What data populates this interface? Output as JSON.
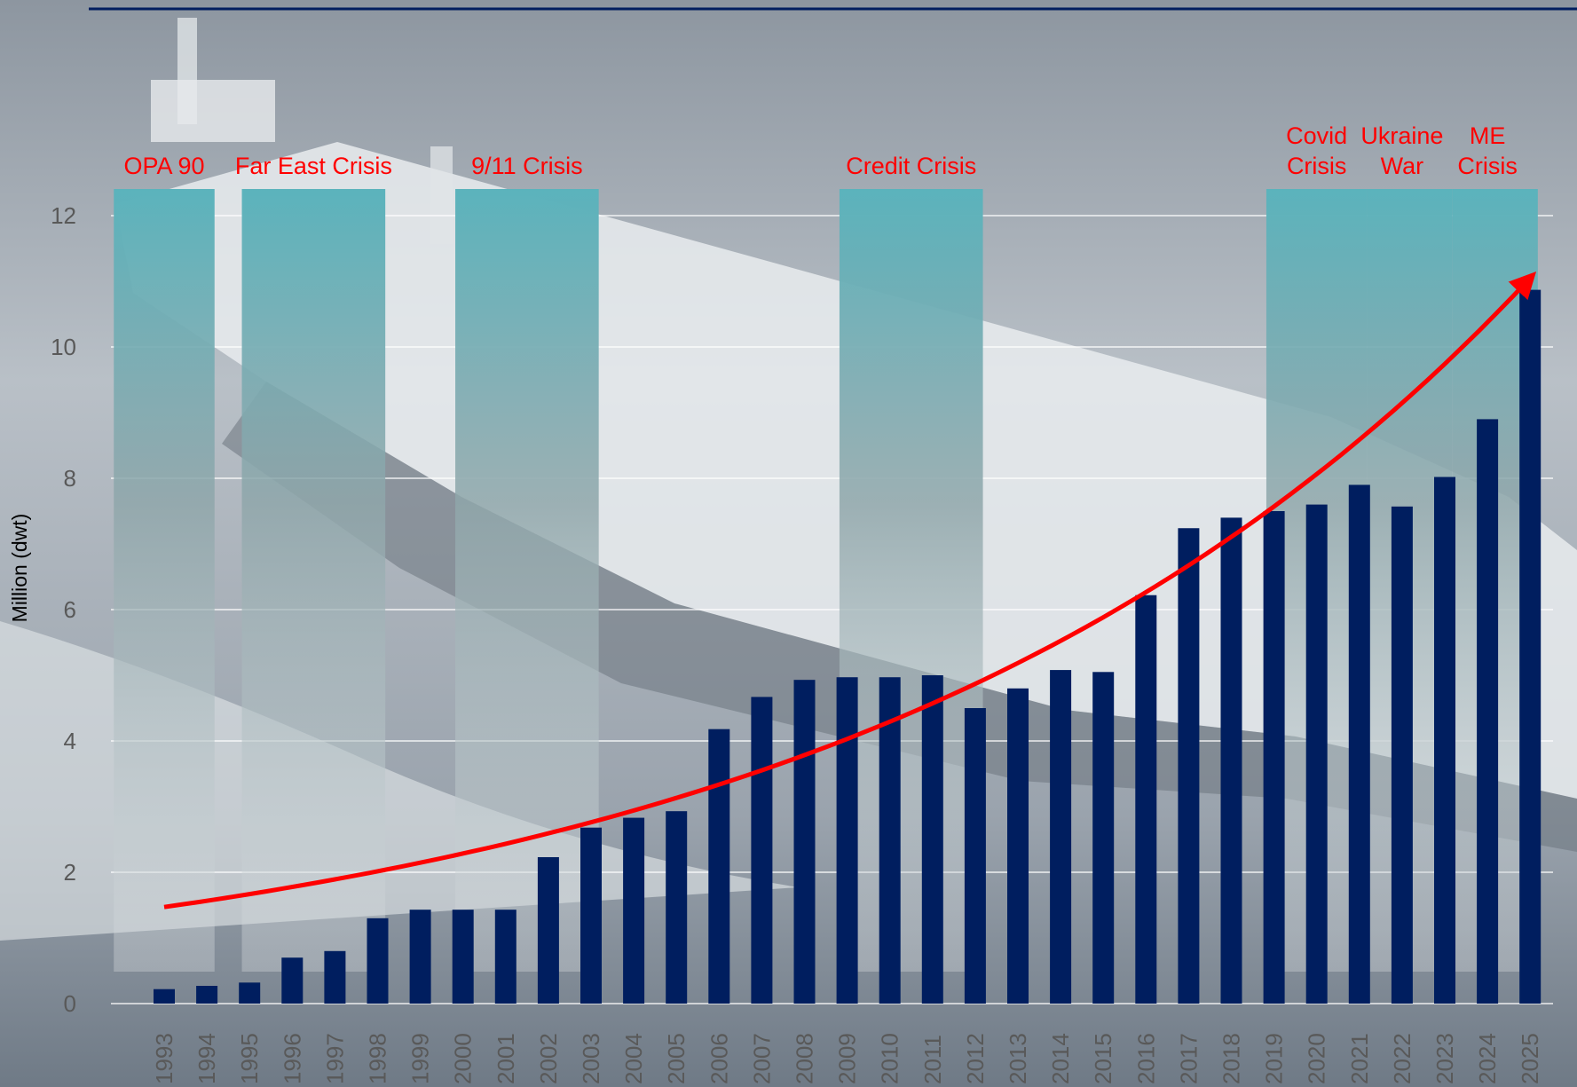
{
  "colors": {
    "bar": "#001E5F",
    "trend": "#FF0000",
    "crisis_band_top": "#5BB3BC",
    "crisis_label": "#FF0000",
    "gridline": "#FFFFFF",
    "header_rule": "#001E5F"
  },
  "chart_data": {
    "type": "bar",
    "ylabel": "Million (dwt)",
    "ylim": [
      0,
      12
    ],
    "yticks": [
      0,
      2,
      4,
      6,
      8,
      10,
      12
    ],
    "grid": true,
    "background": "photo of a crude oil tanker at sea (greyscale)",
    "categories": [
      "1993",
      "1994",
      "1995",
      "1996",
      "1997",
      "1998",
      "1999",
      "2000",
      "2001",
      "2002",
      "2003",
      "2004",
      "2005",
      "2006",
      "2007",
      "2008",
      "2009",
      "2010",
      "2011",
      "2012",
      "2013",
      "2014",
      "2015",
      "2016",
      "2017",
      "2018",
      "2019",
      "2020",
      "2021",
      "2022",
      "2023",
      "2024",
      "2025"
    ],
    "values": [
      0.22,
      0.27,
      0.32,
      0.7,
      0.8,
      1.3,
      1.43,
      1.43,
      1.43,
      2.23,
      2.68,
      2.83,
      2.93,
      4.18,
      4.67,
      4.93,
      4.97,
      4.97,
      5.0,
      4.5,
      4.8,
      5.08,
      5.05,
      6.22,
      7.24,
      7.4,
      7.5,
      7.6,
      7.9,
      7.57,
      8.02,
      8.9,
      10.87
    ],
    "trend_line": {
      "type": "exponential",
      "start": {
        "x": "1993",
        "y": 1.47
      },
      "end": {
        "x": "2025",
        "y": 11.05
      },
      "arrow_at_end": true
    },
    "crisis_periods": [
      {
        "label": [
          "OPA 90"
        ],
        "from": "1993",
        "to": "1994"
      },
      {
        "label": [
          "Far East Crisis"
        ],
        "from": "1996",
        "to": "1998"
      },
      {
        "label": [
          "9/11 Crisis"
        ],
        "from": "2001",
        "to": "2003"
      },
      {
        "label": [
          "Credit Crisis"
        ],
        "from": "2010",
        "to": "2012"
      },
      {
        "label": [
          "Covid",
          "Crisis"
        ],
        "from": "2020",
        "to": "2021"
      },
      {
        "label": [
          "Ukraine",
          "War"
        ],
        "from": "2022",
        "to": "2023"
      },
      {
        "label": [
          "ME",
          "Crisis"
        ],
        "from": "2024",
        "to": "2025"
      }
    ]
  }
}
